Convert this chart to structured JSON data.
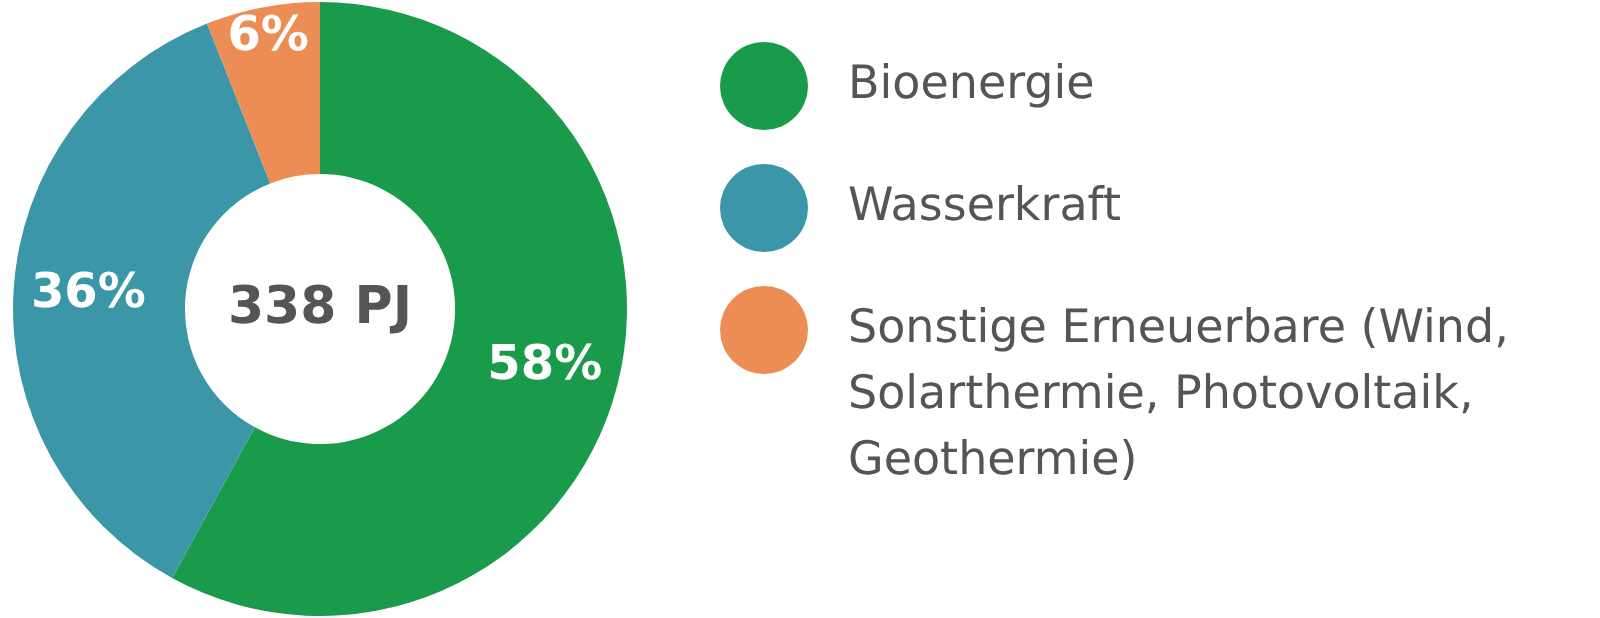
{
  "chart_data": {
    "type": "donut",
    "categories": [
      "Bioenergie",
      "Wasserkraft",
      "Sonstige Erneuerbare (Wind, Solarthermie, Photovoltaik, Geothermie)"
    ],
    "values": [
      58,
      36,
      6
    ],
    "colors": [
      "#1a9b4b",
      "#3b97a8",
      "#ec8d55"
    ],
    "value_labels": [
      "58%",
      "36%",
      "6%"
    ],
    "legend": "right",
    "annotations": [
      "338 PJ"
    ]
  }
}
